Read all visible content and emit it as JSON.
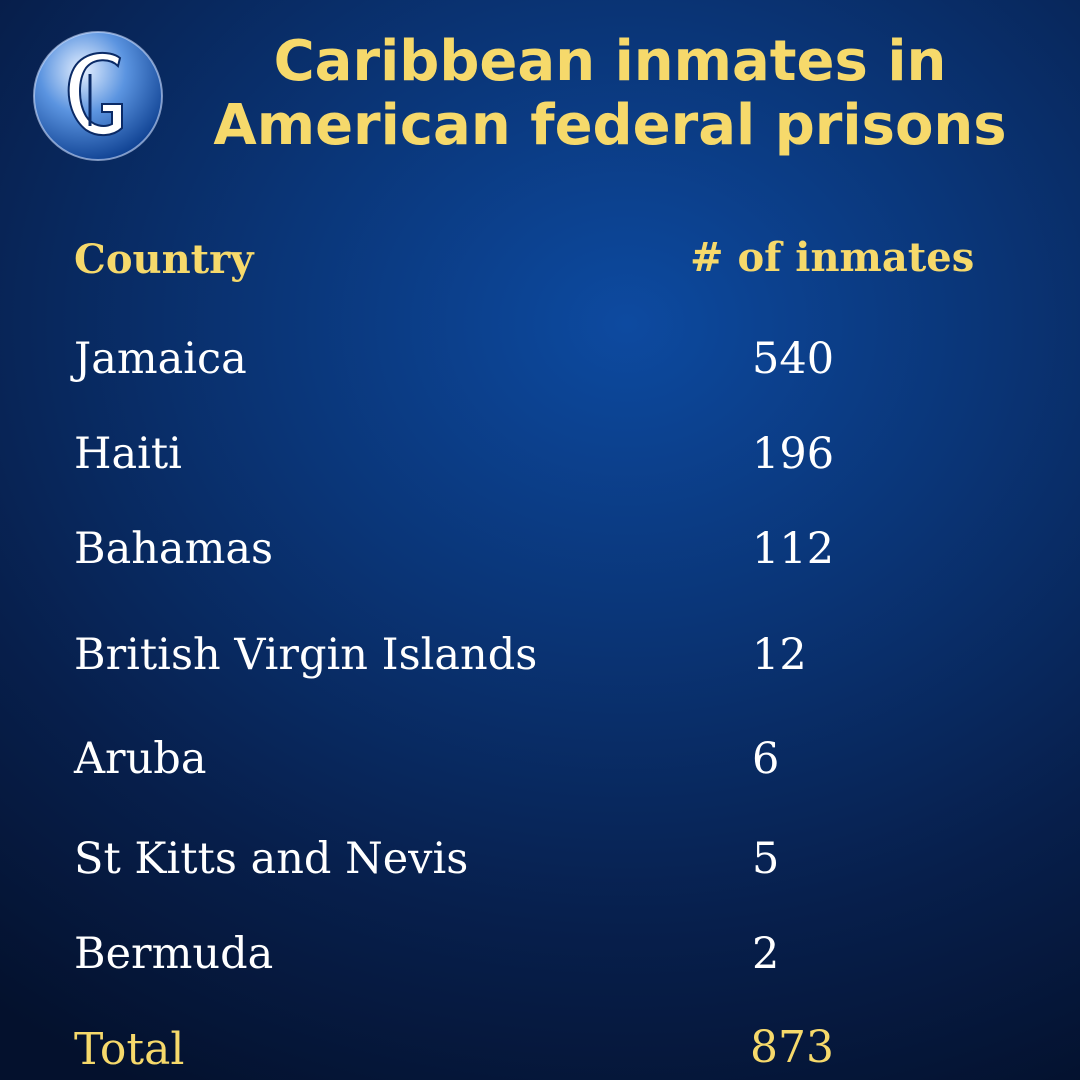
{
  "brand": {
    "logo_icon": "gleaner-globe-g-logo",
    "accent_color": "#f6d96b",
    "background_color": "#0a3577"
  },
  "chart_data": {
    "type": "table",
    "title": "Caribbean inmates in American federal prisons",
    "columns": [
      "Country",
      "# of inmates"
    ],
    "rows": [
      {
        "country": "Jamaica",
        "value": "540"
      },
      {
        "country": "Haiti",
        "value": "196"
      },
      {
        "country": "Bahamas",
        "value": "112"
      },
      {
        "country": "British Virgin Islands",
        "value": "12"
      },
      {
        "country": "Aruba",
        "value": "6"
      },
      {
        "country": "St Kitts and Nevis",
        "value": "5"
      },
      {
        "country": "Bermuda",
        "value": "2"
      }
    ],
    "total": {
      "label": "Total",
      "value": "873"
    }
  }
}
